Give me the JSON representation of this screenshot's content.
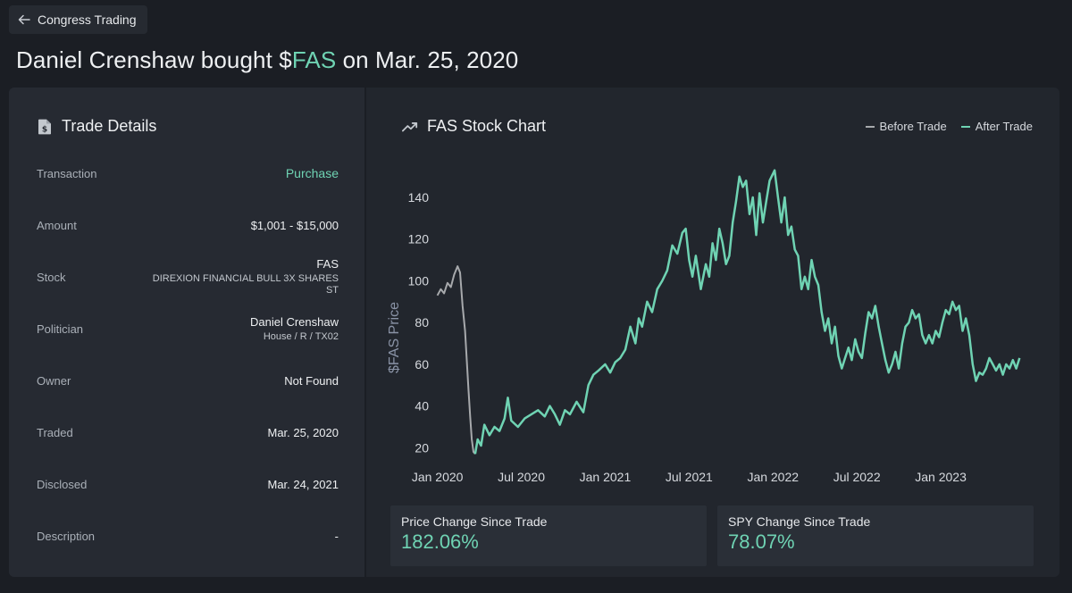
{
  "nav": {
    "back_label": "Congress Trading"
  },
  "title": {
    "prefix": "Daniel Crenshaw bought $",
    "ticker": "FAS",
    "suffix": " on Mar. 25, 2020"
  },
  "trade_details": {
    "header": "Trade Details",
    "rows": [
      {
        "label": "Transaction",
        "value": "Purchase"
      },
      {
        "label": "Amount",
        "value": "$1,001 - $15,000"
      },
      {
        "label": "Stock",
        "value": "FAS",
        "sub": "DIREXION FINANCIAL BULL 3X SHARES",
        "sub2": "ST"
      },
      {
        "label": "Politician",
        "value": "Daniel Crenshaw",
        "sub": "House / R / TX02"
      },
      {
        "label": "Owner",
        "value": "Not Found"
      },
      {
        "label": "Traded",
        "value": "Mar. 25, 2020"
      },
      {
        "label": "Disclosed",
        "value": "Mar. 24, 2021"
      },
      {
        "label": "Description",
        "value": "-"
      }
    ]
  },
  "chart_panel": {
    "header": "FAS Stock Chart",
    "legend": [
      {
        "label": "Before Trade",
        "color": "#a7a9ac"
      },
      {
        "label": "After Trade",
        "color": "#6fd3b3"
      }
    ]
  },
  "chart_data": {
    "type": "line",
    "title": "FAS Stock Chart",
    "xlabel": "",
    "ylabel": "$FAS Price",
    "ylim": [
      12,
      155
    ],
    "yticks": [
      20,
      40,
      60,
      80,
      100,
      120,
      140
    ],
    "xlim": [
      2019.97,
      2023.58
    ],
    "xticks": [
      {
        "label": "Jan 2020",
        "x": 2020.0
      },
      {
        "label": "Jul 2020",
        "x": 2020.5
      },
      {
        "label": "Jan 2021",
        "x": 2021.0
      },
      {
        "label": "Jul 2021",
        "x": 2021.5
      },
      {
        "label": "Jan 2022",
        "x": 2022.0
      },
      {
        "label": "Jul 2022",
        "x": 2022.5
      },
      {
        "label": "Jan 2023",
        "x": 2023.0
      }
    ],
    "series": [
      {
        "name": "Before Trade",
        "color": "#a7a9ac",
        "points": [
          [
            2020.0,
            93
          ],
          [
            2020.02,
            96
          ],
          [
            2020.04,
            94
          ],
          [
            2020.06,
            99
          ],
          [
            2020.08,
            97
          ],
          [
            2020.1,
            103
          ],
          [
            2020.12,
            107
          ],
          [
            2020.135,
            104
          ],
          [
            2020.15,
            88
          ],
          [
            2020.165,
            76
          ],
          [
            2020.175,
            62
          ],
          [
            2020.185,
            48
          ],
          [
            2020.195,
            35
          ],
          [
            2020.205,
            24
          ],
          [
            2020.215,
            18
          ],
          [
            2020.225,
            17
          ]
        ]
      },
      {
        "name": "After Trade",
        "color": "#6fd3b3",
        "points": [
          [
            2020.225,
            17
          ],
          [
            2020.24,
            24
          ],
          [
            2020.26,
            21
          ],
          [
            2020.28,
            31
          ],
          [
            2020.31,
            26
          ],
          [
            2020.34,
            30
          ],
          [
            2020.37,
            28
          ],
          [
            2020.4,
            34
          ],
          [
            2020.42,
            44
          ],
          [
            2020.44,
            33
          ],
          [
            2020.48,
            30
          ],
          [
            2020.52,
            34
          ],
          [
            2020.56,
            36
          ],
          [
            2020.6,
            38
          ],
          [
            2020.64,
            35
          ],
          [
            2020.67,
            40
          ],
          [
            2020.7,
            36
          ],
          [
            2020.73,
            31
          ],
          [
            2020.76,
            38
          ],
          [
            2020.79,
            36
          ],
          [
            2020.83,
            42
          ],
          [
            2020.87,
            37
          ],
          [
            2020.9,
            50
          ],
          [
            2020.93,
            55
          ],
          [
            2020.96,
            57
          ],
          [
            2021.0,
            60
          ],
          [
            2021.03,
            56
          ],
          [
            2021.06,
            61
          ],
          [
            2021.09,
            63
          ],
          [
            2021.12,
            67
          ],
          [
            2021.15,
            78
          ],
          [
            2021.18,
            70
          ],
          [
            2021.2,
            82
          ],
          [
            2021.22,
            78
          ],
          [
            2021.25,
            90
          ],
          [
            2021.28,
            85
          ],
          [
            2021.31,
            96
          ],
          [
            2021.34,
            100
          ],
          [
            2021.37,
            105
          ],
          [
            2021.4,
            117
          ],
          [
            2021.43,
            113
          ],
          [
            2021.46,
            123
          ],
          [
            2021.48,
            125
          ],
          [
            2021.5,
            110
          ],
          [
            2021.52,
            102
          ],
          [
            2021.54,
            112
          ],
          [
            2021.57,
            96
          ],
          [
            2021.6,
            108
          ],
          [
            2021.62,
            102
          ],
          [
            2021.64,
            118
          ],
          [
            2021.66,
            110
          ],
          [
            2021.68,
            125
          ],
          [
            2021.7,
            118
          ],
          [
            2021.72,
            108
          ],
          [
            2021.74,
            112
          ],
          [
            2021.76,
            128
          ],
          [
            2021.78,
            138
          ],
          [
            2021.8,
            150
          ],
          [
            2021.82,
            145
          ],
          [
            2021.84,
            148
          ],
          [
            2021.86,
            132
          ],
          [
            2021.88,
            140
          ],
          [
            2021.9,
            122
          ],
          [
            2021.92,
            142
          ],
          [
            2021.94,
            128
          ],
          [
            2021.96,
            138
          ],
          [
            2021.98,
            148
          ],
          [
            2022.01,
            153
          ],
          [
            2022.03,
            140
          ],
          [
            2022.05,
            128
          ],
          [
            2022.07,
            140
          ],
          [
            2022.09,
            122
          ],
          [
            2022.11,
            126
          ],
          [
            2022.13,
            115
          ],
          [
            2022.15,
            112
          ],
          [
            2022.17,
            96
          ],
          [
            2022.19,
            102
          ],
          [
            2022.21,
            96
          ],
          [
            2022.23,
            110
          ],
          [
            2022.25,
            102
          ],
          [
            2022.27,
            98
          ],
          [
            2022.29,
            85
          ],
          [
            2022.31,
            76
          ],
          [
            2022.33,
            82
          ],
          [
            2022.35,
            70
          ],
          [
            2022.37,
            78
          ],
          [
            2022.39,
            64
          ],
          [
            2022.41,
            58
          ],
          [
            2022.43,
            63
          ],
          [
            2022.45,
            68
          ],
          [
            2022.47,
            62
          ],
          [
            2022.49,
            72
          ],
          [
            2022.51,
            66
          ],
          [
            2022.53,
            63
          ],
          [
            2022.55,
            75
          ],
          [
            2022.57,
            85
          ],
          [
            2022.59,
            82
          ],
          [
            2022.61,
            88
          ],
          [
            2022.63,
            78
          ],
          [
            2022.65,
            70
          ],
          [
            2022.67,
            62
          ],
          [
            2022.69,
            56
          ],
          [
            2022.71,
            60
          ],
          [
            2022.73,
            66
          ],
          [
            2022.75,
            58
          ],
          [
            2022.77,
            70
          ],
          [
            2022.79,
            78
          ],
          [
            2022.81,
            80
          ],
          [
            2022.83,
            86
          ],
          [
            2022.85,
            82
          ],
          [
            2022.87,
            84
          ],
          [
            2022.89,
            74
          ],
          [
            2022.91,
            70
          ],
          [
            2022.93,
            74
          ],
          [
            2022.95,
            70
          ],
          [
            2022.97,
            76
          ],
          [
            2022.99,
            73
          ],
          [
            2023.01,
            80
          ],
          [
            2023.03,
            86
          ],
          [
            2023.05,
            84
          ],
          [
            2023.07,
            90
          ],
          [
            2023.09,
            86
          ],
          [
            2023.11,
            88
          ],
          [
            2023.13,
            76
          ],
          [
            2023.15,
            82
          ],
          [
            2023.17,
            74
          ],
          [
            2023.19,
            60
          ],
          [
            2023.21,
            52
          ],
          [
            2023.23,
            56
          ],
          [
            2023.25,
            55
          ],
          [
            2023.27,
            58
          ],
          [
            2023.29,
            63
          ],
          [
            2023.31,
            60
          ],
          [
            2023.33,
            57
          ],
          [
            2023.35,
            60
          ],
          [
            2023.37,
            55
          ],
          [
            2023.39,
            60
          ],
          [
            2023.41,
            58
          ],
          [
            2023.43,
            62
          ],
          [
            2023.45,
            58
          ],
          [
            2023.47,
            63
          ]
        ]
      }
    ]
  },
  "stats": [
    {
      "label": "Price Change Since Trade",
      "value": "182.06%"
    },
    {
      "label": "SPY Change Since Trade",
      "value": "78.07%"
    }
  ]
}
